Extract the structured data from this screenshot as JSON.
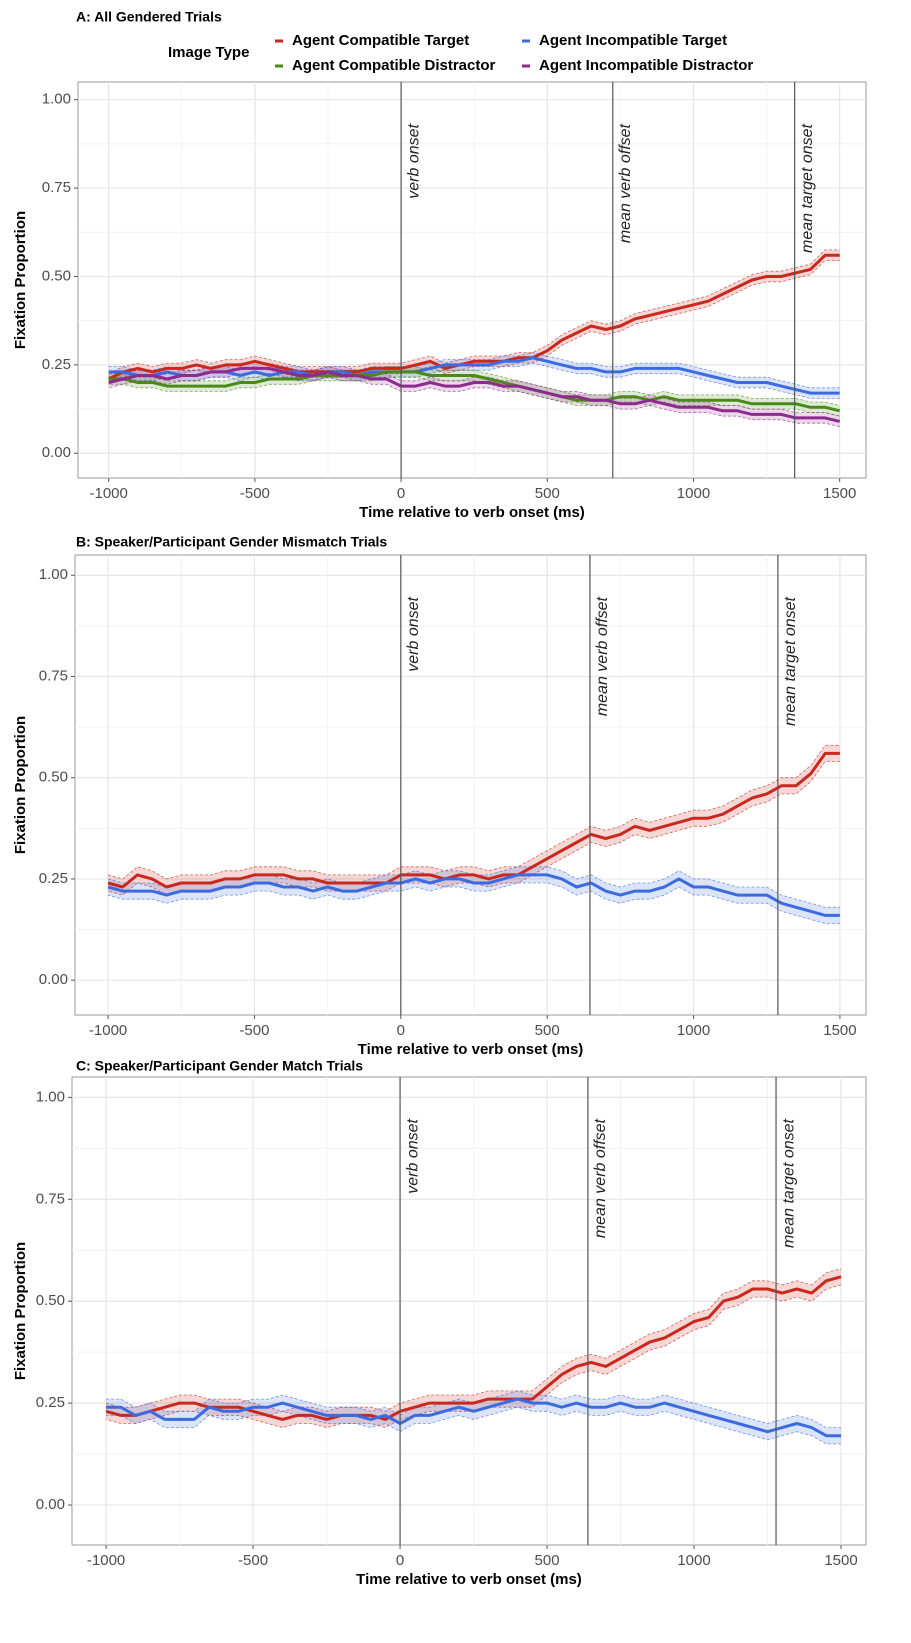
{
  "chart_data": [
    {
      "type": "line",
      "title": "A: All Gendered Trials",
      "x_label": "Time relative to verb onset (ms)",
      "y_label": "Fixation Proportion",
      "legend_title": "Image Type",
      "legend": true,
      "grid": true,
      "xlim": [
        -1105,
        1590
      ],
      "ylim": [
        -0.07,
        1.05
      ],
      "xticks": [
        -1000,
        -500,
        0,
        500,
        1000,
        1500
      ],
      "yticks": [
        {
          "value": 0,
          "label": "0.00"
        },
        {
          "value": 0.25,
          "label": "0.25"
        },
        {
          "value": 0.5,
          "label": "0.50"
        },
        {
          "value": 0.75,
          "label": "0.75"
        },
        {
          "value": 1,
          "label": "1.00"
        }
      ],
      "vlines": [
        {
          "value": 0,
          "label": "verb onset"
        },
        {
          "value": 724,
          "label": "mean verb offset"
        },
        {
          "value": 1346,
          "label": "mean target onset"
        }
      ],
      "x": [
        -1000,
        -950,
        -900,
        -850,
        -800,
        -750,
        -700,
        -650,
        -600,
        -550,
        -500,
        -450,
        -400,
        -350,
        -300,
        -250,
        -200,
        -150,
        -100,
        -50,
        0,
        50,
        100,
        150,
        200,
        250,
        300,
        350,
        400,
        450,
        500,
        550,
        600,
        650,
        700,
        750,
        800,
        850,
        900,
        950,
        1000,
        1050,
        1100,
        1150,
        1200,
        1250,
        1300,
        1350,
        1400,
        1450,
        1500
      ],
      "series": [
        {
          "name": "Agent Compatible Target",
          "color": "#c8281e",
          "error": 0.015,
          "values": [
            0.21,
            0.23,
            0.24,
            0.23,
            0.24,
            0.24,
            0.25,
            0.24,
            0.25,
            0.25,
            0.26,
            0.25,
            0.24,
            0.23,
            0.23,
            0.23,
            0.23,
            0.23,
            0.24,
            0.24,
            0.24,
            0.25,
            0.26,
            0.24,
            0.25,
            0.26,
            0.26,
            0.26,
            0.27,
            0.27,
            0.29,
            0.32,
            0.34,
            0.36,
            0.35,
            0.36,
            0.38,
            0.39,
            0.4,
            0.41,
            0.42,
            0.43,
            0.45,
            0.47,
            0.49,
            0.5,
            0.5,
            0.51,
            0.52,
            0.56,
            0.56
          ]
        },
        {
          "name": "Agent Incompatible Target",
          "color": "#3c6be0",
          "error": 0.015,
          "values": [
            0.23,
            0.23,
            0.22,
            0.22,
            0.23,
            0.22,
            0.22,
            0.23,
            0.23,
            0.22,
            0.23,
            0.22,
            0.23,
            0.23,
            0.22,
            0.23,
            0.23,
            0.22,
            0.23,
            0.23,
            0.23,
            0.23,
            0.24,
            0.25,
            0.25,
            0.25,
            0.25,
            0.26,
            0.26,
            0.27,
            0.26,
            0.25,
            0.24,
            0.24,
            0.23,
            0.23,
            0.24,
            0.24,
            0.24,
            0.24,
            0.23,
            0.22,
            0.21,
            0.2,
            0.2,
            0.2,
            0.19,
            0.18,
            0.17,
            0.17,
            0.17
          ]
        },
        {
          "name": "Agent Compatible Distractor",
          "color": "#4a8a1a",
          "error": 0.015,
          "values": [
            0.21,
            0.21,
            0.2,
            0.2,
            0.19,
            0.19,
            0.19,
            0.19,
            0.19,
            0.2,
            0.2,
            0.21,
            0.21,
            0.21,
            0.22,
            0.22,
            0.22,
            0.22,
            0.22,
            0.23,
            0.23,
            0.23,
            0.22,
            0.22,
            0.22,
            0.22,
            0.21,
            0.2,
            0.19,
            0.18,
            0.17,
            0.16,
            0.15,
            0.15,
            0.15,
            0.16,
            0.16,
            0.15,
            0.16,
            0.15,
            0.15,
            0.15,
            0.15,
            0.15,
            0.14,
            0.14,
            0.14,
            0.14,
            0.13,
            0.13,
            0.12
          ]
        },
        {
          "name": "Agent Incompatible Distractor",
          "color": "#8e2a8e",
          "error": 0.015,
          "values": [
            0.2,
            0.21,
            0.22,
            0.22,
            0.21,
            0.22,
            0.22,
            0.23,
            0.23,
            0.24,
            0.24,
            0.24,
            0.23,
            0.22,
            0.22,
            0.23,
            0.22,
            0.22,
            0.21,
            0.21,
            0.19,
            0.19,
            0.2,
            0.19,
            0.19,
            0.2,
            0.2,
            0.19,
            0.19,
            0.18,
            0.17,
            0.16,
            0.16,
            0.15,
            0.15,
            0.14,
            0.14,
            0.15,
            0.14,
            0.13,
            0.13,
            0.13,
            0.12,
            0.12,
            0.11,
            0.11,
            0.11,
            0.1,
            0.1,
            0.1,
            0.09
          ]
        }
      ]
    },
    {
      "type": "line",
      "title": "B: Speaker/Participant Gender Mismatch Trials",
      "x_label": "Time relative to verb onset (ms)",
      "y_label": "Fixation Proportion",
      "legend": false,
      "grid": true,
      "xlim": [
        -1113,
        1589
      ],
      "ylim": [
        -0.086,
        1.05
      ],
      "xticks": [
        -1000,
        -500,
        0,
        500,
        1000,
        1500
      ],
      "yticks": [
        {
          "value": 0,
          "label": "0.00"
        },
        {
          "value": 0.25,
          "label": "0.25"
        },
        {
          "value": 0.5,
          "label": "0.50"
        },
        {
          "value": 0.75,
          "label": "0.75"
        },
        {
          "value": 1,
          "label": "1.00"
        }
      ],
      "vlines": [
        {
          "value": 0,
          "label": "verb onset"
        },
        {
          "value": 646,
          "label": "mean verb offset"
        },
        {
          "value": 1288,
          "label": "mean target onset"
        }
      ],
      "x": [
        -1000,
        -950,
        -900,
        -850,
        -800,
        -750,
        -700,
        -650,
        -600,
        -550,
        -500,
        -450,
        -400,
        -350,
        -300,
        -250,
        -200,
        -150,
        -100,
        -50,
        0,
        50,
        100,
        150,
        200,
        250,
        300,
        350,
        400,
        450,
        500,
        550,
        600,
        650,
        700,
        750,
        800,
        850,
        900,
        950,
        1000,
        1050,
        1100,
        1150,
        1200,
        1250,
        1300,
        1350,
        1400,
        1450,
        1500
      ],
      "series": [
        {
          "color": "#c8281e",
          "error": 0.02,
          "values": [
            0.24,
            0.23,
            0.26,
            0.25,
            0.23,
            0.24,
            0.24,
            0.24,
            0.25,
            0.25,
            0.26,
            0.26,
            0.26,
            0.25,
            0.25,
            0.24,
            0.24,
            0.24,
            0.24,
            0.24,
            0.26,
            0.26,
            0.26,
            0.25,
            0.26,
            0.26,
            0.25,
            0.26,
            0.26,
            0.28,
            0.3,
            0.32,
            0.34,
            0.36,
            0.35,
            0.36,
            0.38,
            0.37,
            0.38,
            0.39,
            0.4,
            0.4,
            0.41,
            0.43,
            0.45,
            0.46,
            0.48,
            0.48,
            0.51,
            0.56,
            0.56
          ]
        },
        {
          "color": "#3c6be0",
          "error": 0.02,
          "values": [
            0.23,
            0.22,
            0.22,
            0.22,
            0.21,
            0.22,
            0.22,
            0.22,
            0.23,
            0.23,
            0.24,
            0.24,
            0.23,
            0.23,
            0.22,
            0.23,
            0.22,
            0.22,
            0.23,
            0.24,
            0.24,
            0.25,
            0.24,
            0.25,
            0.25,
            0.24,
            0.24,
            0.25,
            0.26,
            0.26,
            0.26,
            0.25,
            0.23,
            0.24,
            0.22,
            0.21,
            0.22,
            0.22,
            0.23,
            0.25,
            0.23,
            0.23,
            0.22,
            0.21,
            0.21,
            0.21,
            0.19,
            0.18,
            0.17,
            0.16,
            0.16
          ]
        }
      ]
    },
    {
      "type": "line",
      "title": "C: Speaker/Participant Gender Match Trials",
      "x_label": "Time relative to verb onset (ms)",
      "y_label": "Fixation Proportion",
      "legend": false,
      "grid": true,
      "xlim": [
        -1116,
        1585
      ],
      "ylim": [
        -0.098,
        1.05
      ],
      "xticks": [
        -1000,
        -500,
        0,
        500,
        1000,
        1500
      ],
      "yticks": [
        {
          "value": 0,
          "label": "0.00"
        },
        {
          "value": 0.25,
          "label": "0.25"
        },
        {
          "value": 0.5,
          "label": "0.50"
        },
        {
          "value": 0.75,
          "label": "0.75"
        },
        {
          "value": 1,
          "label": "1.00"
        }
      ],
      "vlines": [
        {
          "value": 0,
          "label": "verb onset"
        },
        {
          "value": 639,
          "label": "mean verb offset"
        },
        {
          "value": 1279,
          "label": "mean target onset"
        }
      ],
      "x": [
        -1000,
        -950,
        -900,
        -850,
        -800,
        -750,
        -700,
        -650,
        -600,
        -550,
        -500,
        -450,
        -400,
        -350,
        -300,
        -250,
        -200,
        -150,
        -100,
        -50,
        0,
        50,
        100,
        150,
        200,
        250,
        300,
        350,
        400,
        450,
        500,
        550,
        600,
        650,
        700,
        750,
        800,
        850,
        900,
        950,
        1000,
        1050,
        1100,
        1150,
        1200,
        1250,
        1300,
        1350,
        1400,
        1450,
        1500
      ],
      "series": [
        {
          "color": "#c8281e",
          "error": 0.02,
          "values": [
            0.23,
            0.22,
            0.22,
            0.23,
            0.24,
            0.25,
            0.25,
            0.24,
            0.24,
            0.24,
            0.23,
            0.22,
            0.21,
            0.22,
            0.22,
            0.21,
            0.22,
            0.22,
            0.22,
            0.21,
            0.23,
            0.24,
            0.25,
            0.25,
            0.25,
            0.25,
            0.26,
            0.26,
            0.26,
            0.26,
            0.29,
            0.32,
            0.34,
            0.35,
            0.34,
            0.36,
            0.38,
            0.4,
            0.41,
            0.43,
            0.45,
            0.46,
            0.5,
            0.51,
            0.53,
            0.53,
            0.52,
            0.53,
            0.52,
            0.55,
            0.56
          ]
        },
        {
          "color": "#3c6be0",
          "error": 0.02,
          "values": [
            0.24,
            0.24,
            0.22,
            0.23,
            0.21,
            0.21,
            0.21,
            0.24,
            0.23,
            0.23,
            0.24,
            0.24,
            0.25,
            0.24,
            0.23,
            0.22,
            0.22,
            0.22,
            0.21,
            0.22,
            0.2,
            0.22,
            0.22,
            0.23,
            0.24,
            0.23,
            0.24,
            0.25,
            0.26,
            0.25,
            0.25,
            0.24,
            0.25,
            0.24,
            0.24,
            0.25,
            0.24,
            0.24,
            0.25,
            0.24,
            0.23,
            0.22,
            0.21,
            0.2,
            0.19,
            0.18,
            0.19,
            0.2,
            0.19,
            0.17,
            0.17
          ]
        }
      ]
    }
  ]
}
